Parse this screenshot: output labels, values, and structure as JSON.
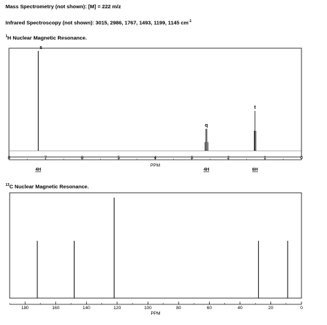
{
  "header": {
    "ms_text": "Mass Spectrometry (not shown): [M] = 222 m/z",
    "ir_text": "Infrared Spectroscopy (not shown): 3015, 2986, 1767, 1493, 1199, 1145 cm",
    "ir_sup": "-1",
    "h1_sup": "1",
    "h1_title": "H Nuclear Magnetic Resonance.",
    "c13_sup": "13",
    "c13_title": "C Nuclear Magnetic Resonance."
  },
  "chart_data": [
    {
      "type": "line",
      "title": "1H Nuclear Magnetic Resonance.",
      "xlabel": "PPM",
      "xlim": [
        8,
        0
      ],
      "x_ticks": [
        "8",
        "7",
        "6",
        "5",
        "4",
        "3",
        "2",
        "1",
        "0"
      ],
      "peaks": [
        {
          "ppm": 7.2,
          "height": 1.0,
          "multiplicity": "s",
          "integration": "4H"
        },
        {
          "ppm": 2.6,
          "height": 0.22,
          "multiplicity": "q",
          "integration": "4H"
        },
        {
          "ppm": 1.27,
          "height": 0.4,
          "multiplicity": "t",
          "integration": "6H"
        }
      ]
    },
    {
      "type": "line",
      "title": "13C Nuclear Magnetic Resonance.",
      "xlabel": "PPM",
      "xlim": [
        190,
        0
      ],
      "x_ticks": [
        "180",
        "160",
        "140",
        "120",
        "100",
        "80",
        "60",
        "40",
        "20",
        "0"
      ],
      "peaks": [
        {
          "ppm": 172,
          "height": 0.57
        },
        {
          "ppm": 148,
          "height": 0.57
        },
        {
          "ppm": 122,
          "height": 1.0
        },
        {
          "ppm": 28,
          "height": 0.57
        },
        {
          "ppm": 9,
          "height": 0.57
        }
      ]
    }
  ]
}
